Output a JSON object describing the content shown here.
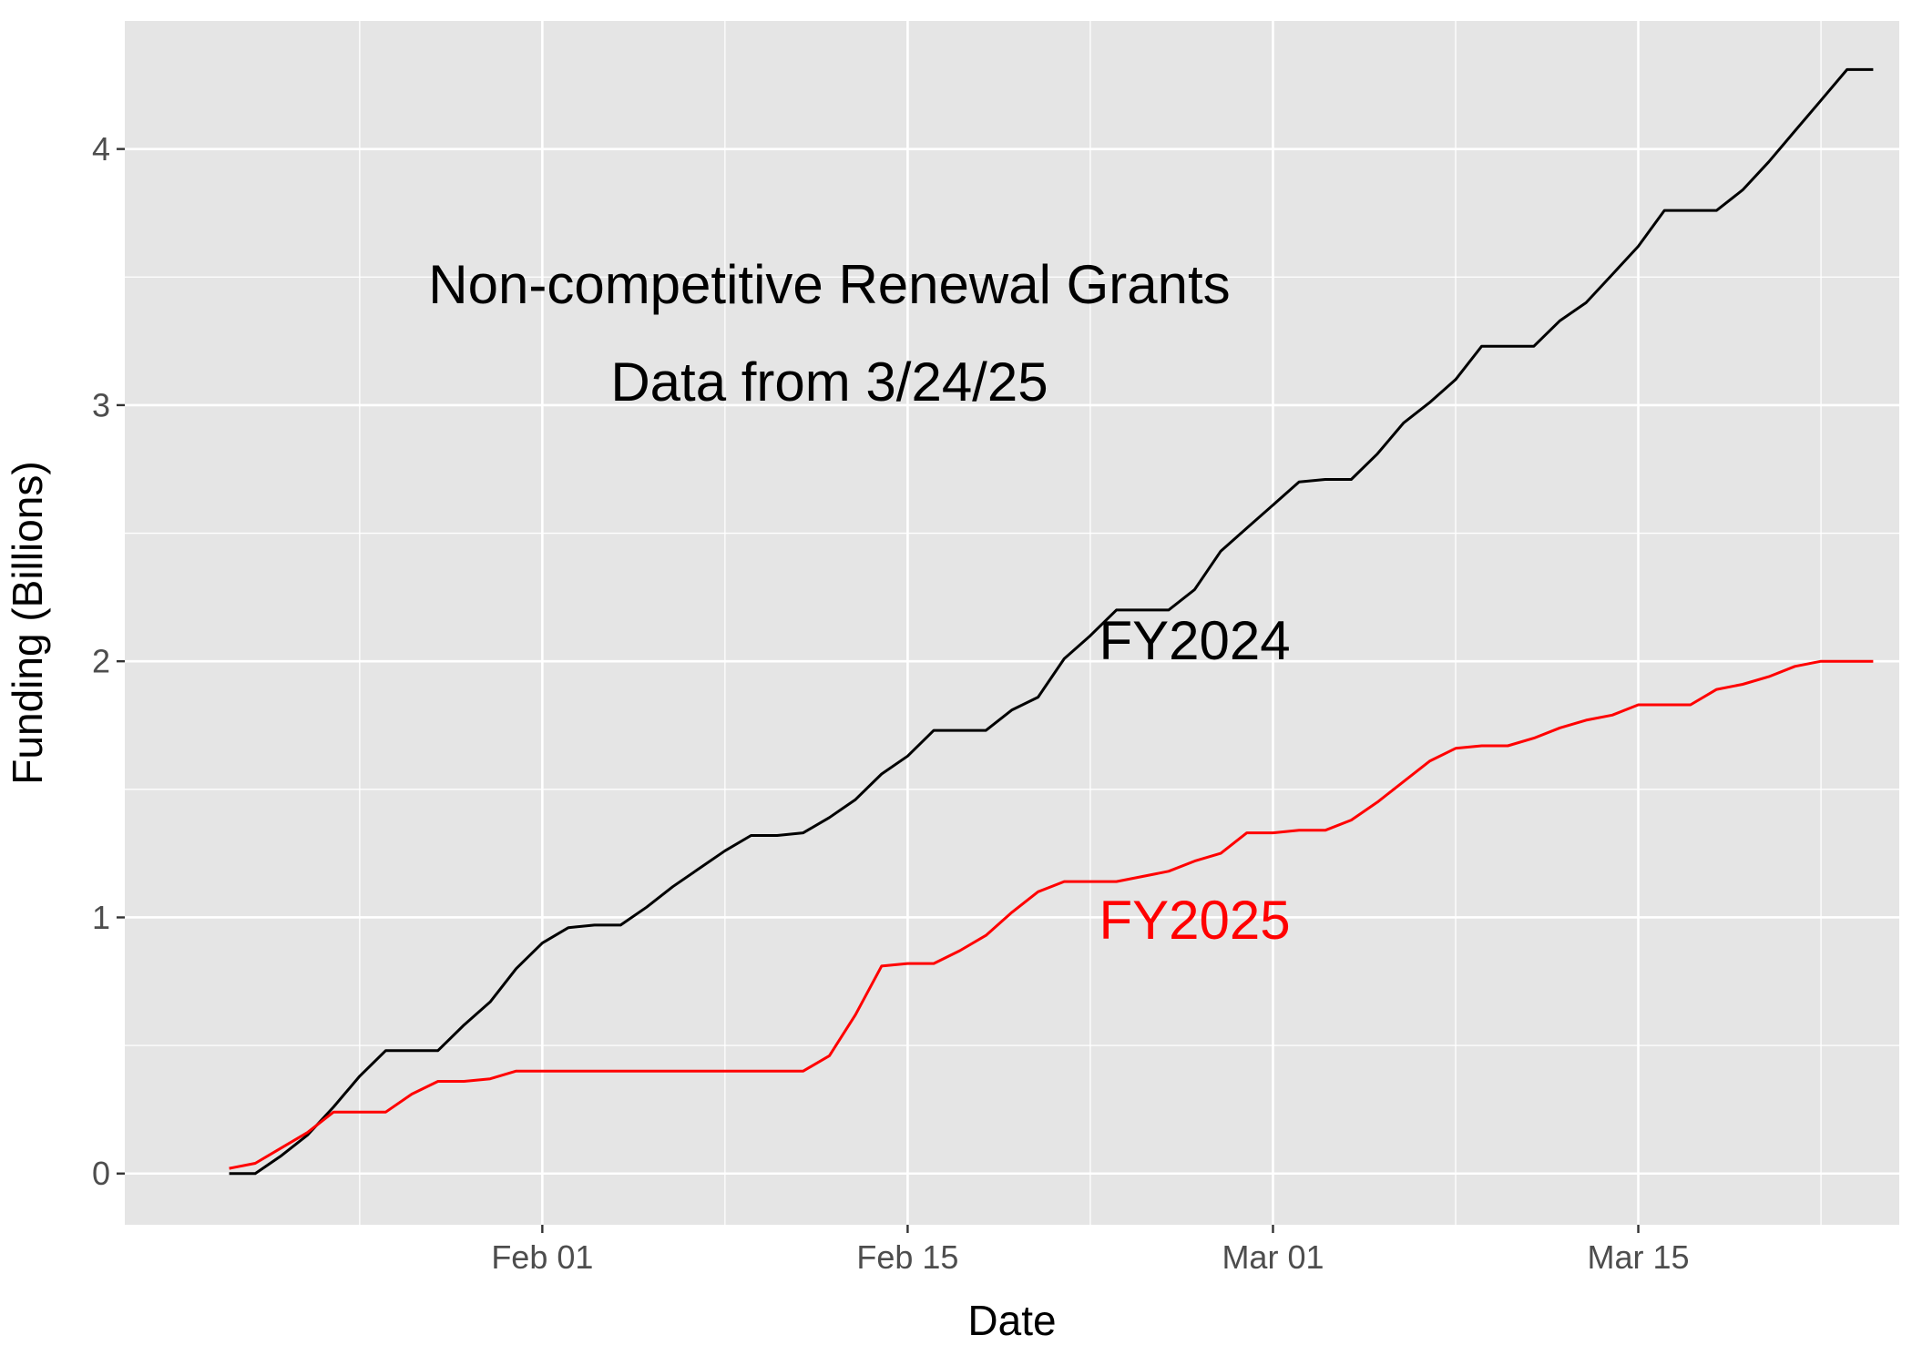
{
  "chart_data": {
    "type": "line",
    "xlabel": "Date",
    "ylabel": "Funding (Billions)",
    "annotations": [
      {
        "text": "Non-competitive Renewal Grants",
        "x": "2025-02-12",
        "y": 3.47,
        "color": "#000000"
      },
      {
        "text": "Data from 3/24/25",
        "x": "2025-02-12",
        "y": 3.09,
        "color": "#000000"
      },
      {
        "text": "FY2024",
        "x": "2025-02-26",
        "y": 2.08,
        "color": "#000000"
      },
      {
        "text": "FY2025",
        "x": "2025-02-26",
        "y": 0.99,
        "color": "#ff0000"
      }
    ],
    "x_ticks": [
      {
        "date": "2025-02-01",
        "label": "Feb 01"
      },
      {
        "date": "2025-02-15",
        "label": "Feb 15"
      },
      {
        "date": "2025-03-01",
        "label": "Mar 01"
      },
      {
        "date": "2025-03-15",
        "label": "Mar 15"
      }
    ],
    "y_ticks": [
      0,
      1,
      2,
      3,
      4
    ],
    "xlim": [
      "2025-01-16",
      "2025-03-25"
    ],
    "ylim": [
      -0.2,
      4.5
    ],
    "grid": true,
    "series": [
      {
        "name": "FY2024",
        "color": "#000000",
        "points": [
          [
            "2025-01-20",
            0.0
          ],
          [
            "2025-01-21",
            0.0
          ],
          [
            "2025-01-22",
            0.07
          ],
          [
            "2025-01-23",
            0.15
          ],
          [
            "2025-01-24",
            0.26
          ],
          [
            "2025-01-25",
            0.38
          ],
          [
            "2025-01-26",
            0.48
          ],
          [
            "2025-01-27",
            0.48
          ],
          [
            "2025-01-28",
            0.48
          ],
          [
            "2025-01-29",
            0.58
          ],
          [
            "2025-01-30",
            0.67
          ],
          [
            "2025-01-31",
            0.8
          ],
          [
            "2025-02-01",
            0.9
          ],
          [
            "2025-02-02",
            0.96
          ],
          [
            "2025-02-03",
            0.97
          ],
          [
            "2025-02-04",
            0.97
          ],
          [
            "2025-02-05",
            1.04
          ],
          [
            "2025-02-06",
            1.12
          ],
          [
            "2025-02-07",
            1.19
          ],
          [
            "2025-02-08",
            1.26
          ],
          [
            "2025-02-09",
            1.32
          ],
          [
            "2025-02-10",
            1.32
          ],
          [
            "2025-02-11",
            1.33
          ],
          [
            "2025-02-12",
            1.39
          ],
          [
            "2025-02-13",
            1.46
          ],
          [
            "2025-02-14",
            1.56
          ],
          [
            "2025-02-15",
            1.63
          ],
          [
            "2025-02-16",
            1.73
          ],
          [
            "2025-02-17",
            1.73
          ],
          [
            "2025-02-18",
            1.73
          ],
          [
            "2025-02-19",
            1.81
          ],
          [
            "2025-02-20",
            1.86
          ],
          [
            "2025-02-21",
            2.01
          ],
          [
            "2025-02-22",
            2.1
          ],
          [
            "2025-02-23",
            2.2
          ],
          [
            "2025-02-24",
            2.2
          ],
          [
            "2025-02-25",
            2.2
          ],
          [
            "2025-02-26",
            2.28
          ],
          [
            "2025-02-27",
            2.43
          ],
          [
            "2025-02-28",
            2.52
          ],
          [
            "2025-03-01",
            2.61
          ],
          [
            "2025-03-02",
            2.7
          ],
          [
            "2025-03-03",
            2.71
          ],
          [
            "2025-03-04",
            2.71
          ],
          [
            "2025-03-05",
            2.81
          ],
          [
            "2025-03-06",
            2.93
          ],
          [
            "2025-03-07",
            3.01
          ],
          [
            "2025-03-08",
            3.1
          ],
          [
            "2025-03-09",
            3.23
          ],
          [
            "2025-03-10",
            3.23
          ],
          [
            "2025-03-11",
            3.23
          ],
          [
            "2025-03-12",
            3.33
          ],
          [
            "2025-03-13",
            3.4
          ],
          [
            "2025-03-14",
            3.51
          ],
          [
            "2025-03-15",
            3.62
          ],
          [
            "2025-03-16",
            3.76
          ],
          [
            "2025-03-17",
            3.76
          ],
          [
            "2025-03-18",
            3.76
          ],
          [
            "2025-03-19",
            3.84
          ],
          [
            "2025-03-20",
            3.95
          ],
          [
            "2025-03-21",
            4.07
          ],
          [
            "2025-03-22",
            4.19
          ],
          [
            "2025-03-23",
            4.31
          ],
          [
            "2025-03-24",
            4.31
          ]
        ]
      },
      {
        "name": "FY2025",
        "color": "#ff0000",
        "points": [
          [
            "2025-01-20",
            0.02
          ],
          [
            "2025-01-21",
            0.04
          ],
          [
            "2025-01-22",
            0.1
          ],
          [
            "2025-01-23",
            0.16
          ],
          [
            "2025-01-24",
            0.24
          ],
          [
            "2025-01-25",
            0.24
          ],
          [
            "2025-01-26",
            0.24
          ],
          [
            "2025-01-27",
            0.31
          ],
          [
            "2025-01-28",
            0.36
          ],
          [
            "2025-01-29",
            0.36
          ],
          [
            "2025-01-30",
            0.37
          ],
          [
            "2025-01-31",
            0.4
          ],
          [
            "2025-02-01",
            0.4
          ],
          [
            "2025-02-11",
            0.4
          ],
          [
            "2025-02-12",
            0.46
          ],
          [
            "2025-02-13",
            0.62
          ],
          [
            "2025-02-14",
            0.81
          ],
          [
            "2025-02-15",
            0.82
          ],
          [
            "2025-02-16",
            0.82
          ],
          [
            "2025-02-17",
            0.87
          ],
          [
            "2025-02-18",
            0.93
          ],
          [
            "2025-02-19",
            1.02
          ],
          [
            "2025-02-20",
            1.1
          ],
          [
            "2025-02-21",
            1.14
          ],
          [
            "2025-02-22",
            1.14
          ],
          [
            "2025-02-23",
            1.14
          ],
          [
            "2025-02-24",
            1.16
          ],
          [
            "2025-02-25",
            1.18
          ],
          [
            "2025-02-26",
            1.22
          ],
          [
            "2025-02-27",
            1.25
          ],
          [
            "2025-02-28",
            1.33
          ],
          [
            "2025-03-01",
            1.33
          ],
          [
            "2025-03-02",
            1.34
          ],
          [
            "2025-03-03",
            1.34
          ],
          [
            "2025-03-04",
            1.38
          ],
          [
            "2025-03-05",
            1.45
          ],
          [
            "2025-03-06",
            1.53
          ],
          [
            "2025-03-07",
            1.61
          ],
          [
            "2025-03-08",
            1.66
          ],
          [
            "2025-03-09",
            1.67
          ],
          [
            "2025-03-10",
            1.67
          ],
          [
            "2025-03-11",
            1.7
          ],
          [
            "2025-03-12",
            1.74
          ],
          [
            "2025-03-13",
            1.77
          ],
          [
            "2025-03-14",
            1.79
          ],
          [
            "2025-03-15",
            1.83
          ],
          [
            "2025-03-16",
            1.83
          ],
          [
            "2025-03-17",
            1.83
          ],
          [
            "2025-03-18",
            1.89
          ],
          [
            "2025-03-19",
            1.91
          ],
          [
            "2025-03-20",
            1.94
          ],
          [
            "2025-03-21",
            1.98
          ],
          [
            "2025-03-22",
            2.0
          ],
          [
            "2025-03-23",
            2.0
          ],
          [
            "2025-03-24",
            2.0
          ]
        ]
      }
    ]
  }
}
